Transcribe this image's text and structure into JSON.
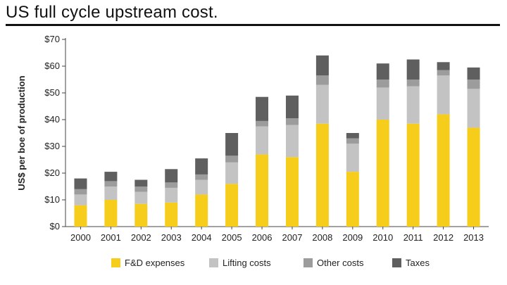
{
  "page": {
    "title": "US full cycle upstream cost."
  },
  "colors": {
    "fd": "#f7cd1c",
    "lifting": "#c3c3c3",
    "other": "#9c9c9c",
    "taxes": "#5f5f5f",
    "axis": "#444444"
  },
  "chart_data": {
    "type": "bar",
    "stacked": true,
    "title": "US full cycle upstream cost.",
    "xlabel": "",
    "ylabel": "US$ per boe of production",
    "ylim": [
      0,
      70
    ],
    "yticks": [
      "$0",
      "$10",
      "$20",
      "$30",
      "$40",
      "$50",
      "$60",
      "$70"
    ],
    "ytick_values": [
      0,
      10,
      20,
      30,
      40,
      50,
      60,
      70
    ],
    "categories": [
      "2000",
      "2001",
      "2002",
      "2003",
      "2004",
      "2005",
      "2006",
      "2007",
      "2008",
      "2009",
      "2010",
      "2011",
      "2012",
      "2013"
    ],
    "series": [
      {
        "name": "F&D expenses",
        "color_key": "fd",
        "values": [
          8,
          10,
          8.5,
          9,
          12,
          16,
          27,
          26,
          38.5,
          20.5,
          40,
          38.5,
          42,
          37
        ]
      },
      {
        "name": "Lifting costs",
        "color_key": "lifting",
        "values": [
          4,
          5,
          4.5,
          5.5,
          5.5,
          8,
          10.5,
          12,
          14.5,
          10.5,
          12,
          14,
          14.5,
          14.5
        ]
      },
      {
        "name": "Other costs",
        "color_key": "other",
        "values": [
          2,
          2,
          2,
          2,
          2,
          2.5,
          2,
          2.5,
          3.5,
          2,
          3,
          2.5,
          2,
          3.5
        ]
      },
      {
        "name": "Taxes",
        "color_key": "taxes",
        "values": [
          4,
          3.5,
          2.5,
          5,
          6,
          8.5,
          9,
          8.5,
          7.5,
          2,
          6,
          7.5,
          3,
          4.5
        ]
      }
    ],
    "legend": {
      "position": "bottom"
    },
    "grid": false
  }
}
